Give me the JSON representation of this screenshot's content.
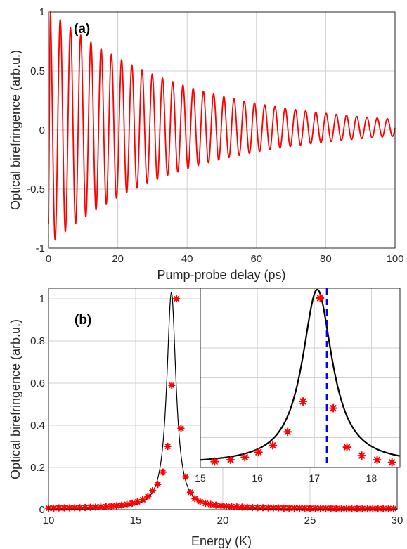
{
  "colors": {
    "signal": "#ff0000",
    "fit": "#000000",
    "marker": "#ff0000",
    "marker_edge": "#b00000",
    "resonance_line": "#0000ff",
    "grid": "#d0d0d0"
  },
  "chart_data": [
    {
      "id": "a",
      "type": "line",
      "panel_label": "(a)",
      "xlabel": "Pump-probe delay (ps)",
      "ylabel": "Optical birefringence (arb.u.)",
      "xlim": [
        0,
        100
      ],
      "ylim": [
        -1,
        1
      ],
      "xticks": [
        0,
        20,
        40,
        60,
        80,
        100
      ],
      "xtick_labels": [
        "0",
        "20",
        "40",
        "60",
        "80",
        "100"
      ],
      "yticks": [
        -1,
        -0.5,
        0,
        0.5,
        1
      ],
      "ytick_labels": [
        "-1",
        "-0.5",
        "0",
        "0.5",
        "1"
      ],
      "grid": true,
      "series": [
        {
          "kind": "damped-oscillation",
          "amplitude": 1.0,
          "period_ps": 2.95,
          "decay_ps": 38,
          "offset": 0.02,
          "phase_rad": -0.95,
          "x_range": [
            0,
            100
          ]
        }
      ]
    },
    {
      "id": "b",
      "type": "scatter",
      "panel_label": "(b)",
      "xlabel": "Energy (K)",
      "ylabel": "Optical birefringence (arb.u.)",
      "xlim": [
        10,
        30
      ],
      "ylim": [
        0,
        1.05
      ],
      "xticks": [
        10,
        15,
        20,
        25,
        30
      ],
      "xtick_labels": [
        "10",
        "15",
        "20",
        "25",
        "30"
      ],
      "yticks": [
        0,
        0.2,
        0.4,
        0.6,
        0.8,
        1
      ],
      "ytick_labels": [
        "0",
        "0.2",
        "0.4",
        "0.6",
        "0.8",
        "1"
      ],
      "grid": true,
      "fit": {
        "kind": "lorentzian",
        "center": 17.05,
        "hwhm": 0.32,
        "amplitude": 1.03
      },
      "points_x": [
        10.0,
        10.3,
        10.6,
        10.9,
        11.2,
        11.5,
        11.8,
        12.1,
        12.4,
        12.7,
        13.0,
        13.3,
        13.6,
        13.9,
        14.2,
        14.5,
        14.8,
        15.1,
        15.4,
        15.7,
        15.97,
        16.27,
        16.57,
        16.84,
        17.07,
        17.34,
        17.6,
        17.87,
        18.14,
        18.4,
        18.7,
        19.0,
        19.3,
        19.6,
        19.9,
        20.2,
        20.5,
        20.8,
        21.1,
        21.4,
        21.7,
        22.0,
        22.3,
        22.6,
        22.9,
        23.2,
        23.5,
        23.8,
        24.1,
        24.4,
        24.7,
        25.0,
        25.3,
        25.6,
        25.9,
        26.2,
        26.5,
        26.8,
        27.1,
        27.4,
        27.7,
        28.0,
        28.3,
        28.6,
        28.9,
        29.2,
        29.5,
        29.8
      ],
      "points_y": [
        0.007,
        0.007,
        0.008,
        0.008,
        0.008,
        0.009,
        0.009,
        0.01,
        0.011,
        0.012,
        0.013,
        0.014,
        0.016,
        0.018,
        0.021,
        0.025,
        0.03,
        0.037,
        0.047,
        0.062,
        0.09,
        0.12,
        0.178,
        0.3,
        0.59,
        1.0,
        0.385,
        0.155,
        0.082,
        0.052,
        0.038,
        0.03,
        0.025,
        0.021,
        0.018,
        0.016,
        0.014,
        0.013,
        0.012,
        0.011,
        0.01,
        0.009,
        0.009,
        0.008,
        0.008,
        0.008,
        0.007,
        0.007,
        0.007,
        0.007,
        0.006,
        0.006,
        0.006,
        0.006,
        0.006,
        0.006,
        0.005,
        0.005,
        0.005,
        0.005,
        0.005,
        0.005,
        0.005,
        0.005,
        0.005,
        0.005,
        0.005,
        0.005
      ]
    },
    {
      "id": "b-inset",
      "type": "scatter",
      "xlim": [
        15,
        18.5
      ],
      "ylim": [
        0,
        1.05
      ],
      "xticks": [
        15,
        16,
        17,
        18
      ],
      "xtick_labels": [
        "15",
        "16",
        "17",
        "18"
      ],
      "grid": true,
      "vline_x": 17.22,
      "fit": {
        "kind": "lorentzian",
        "center": 17.05,
        "hwhm": 0.32,
        "amplitude": 1.03
      },
      "points_x": [
        15.25,
        15.53,
        15.78,
        16.02,
        16.27,
        16.53,
        16.8,
        17.1,
        17.33,
        17.57,
        17.83,
        18.1,
        18.36
      ],
      "points_y": [
        0.035,
        0.045,
        0.06,
        0.09,
        0.13,
        0.21,
        0.39,
        1.0,
        0.35,
        0.12,
        0.07,
        0.045,
        0.03
      ]
    }
  ]
}
